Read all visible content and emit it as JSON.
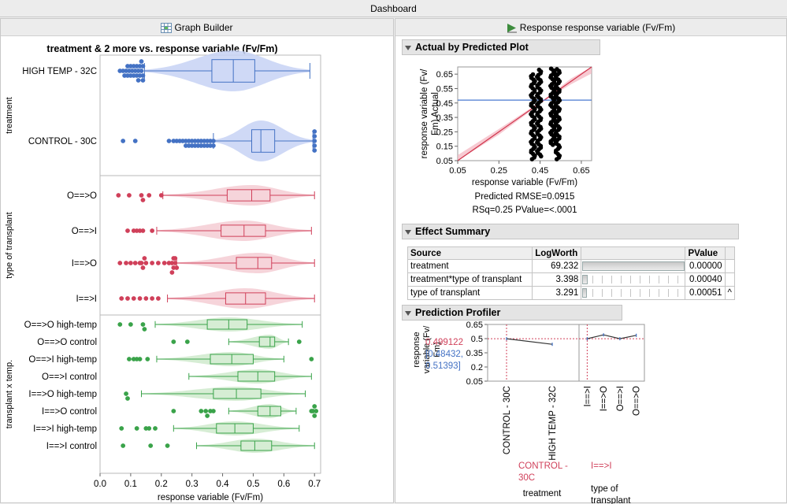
{
  "dashboard": {
    "title": "Dashboard"
  },
  "left_panel": {
    "header": "Graph Builder",
    "chart_title": "treatment & 2 more vs. response variable (Fv/Fm)"
  },
  "right_panel": {
    "header": "Response response variable (Fv/Fm)"
  },
  "colors": {
    "blue": "#4472c4",
    "red": "#d0405a",
    "green": "#3aa34a",
    "blue_fill": "#c7d2f4",
    "red_fill": "#f5cdd4",
    "green_fill": "#cfeacc"
  },
  "chart_data": [
    {
      "type": "box-violin",
      "title": "treatment & 2 more vs. response variable (Fv/Fm)",
      "xlabel": "response variable (Fv/Fm)",
      "xlim": [
        0.0,
        0.72
      ],
      "xticks": [
        "0.0",
        "0.1",
        "0.2",
        "0.3",
        "0.4",
        "0.5",
        "0.6",
        "0.7"
      ],
      "panels": [
        {
          "name": "treatment",
          "color": "blue",
          "rows": [
            {
              "label": "HIGH TEMP - 32C",
              "whisker_lo": 0.145,
              "q1": 0.365,
              "median": 0.435,
              "q3": 0.505,
              "whisker_hi": 0.685,
              "outliers": [
                0.065,
                0.075,
                0.085,
                0.09,
                0.095,
                0.1,
                0.105,
                0.11,
                0.115,
                0.12,
                0.125,
                0.13,
                0.135,
                0.14,
                0.14,
                0.14,
                0.135,
                0.13,
                0.125,
                0.12,
                0.11,
                0.1,
                0.09,
                0.08
              ]
            },
            {
              "label": "CONTROL - 30C",
              "whisker_lo": 0.37,
              "q1": 0.495,
              "median": 0.525,
              "q3": 0.57,
              "whisker_hi": 0.695,
              "outliers": [
                0.075,
                0.115,
                0.225,
                0.24,
                0.25,
                0.26,
                0.27,
                0.28,
                0.29,
                0.3,
                0.31,
                0.32,
                0.33,
                0.34,
                0.35,
                0.36,
                0.37,
                0.37,
                0.36,
                0.35,
                0.34,
                0.33,
                0.32,
                0.31,
                0.3,
                0.29,
                0.28,
                0.7,
                0.7,
                0.7,
                0.7,
                0.7
              ]
            }
          ]
        },
        {
          "name": "type of transplant",
          "color": "red",
          "rows": [
            {
              "label": "O==>O",
              "whisker_lo": 0.205,
              "q1": 0.415,
              "median": 0.495,
              "q3": 0.555,
              "whisker_hi": 0.7,
              "outliers": [
                0.06,
                0.095,
                0.135,
                0.14,
                0.16,
                0.2
              ]
            },
            {
              "label": "O==>I",
              "whisker_lo": 0.185,
              "q1": 0.395,
              "median": 0.47,
              "q3": 0.54,
              "whisker_hi": 0.69,
              "outliers": [
                0.09,
                0.11,
                0.12,
                0.13,
                0.14,
                0.17
              ]
            },
            {
              "label": "I==>O",
              "whisker_lo": 0.25,
              "q1": 0.445,
              "median": 0.515,
              "q3": 0.56,
              "whisker_hi": 0.7,
              "outliers": [
                0.065,
                0.085,
                0.1,
                0.115,
                0.13,
                0.135,
                0.14,
                0.145,
                0.15,
                0.17,
                0.19,
                0.21,
                0.225,
                0.235,
                0.24,
                0.245,
                0.25,
                0.245,
                0.24,
                0.235
              ]
            },
            {
              "label": "I==>I",
              "whisker_lo": 0.22,
              "q1": 0.41,
              "median": 0.475,
              "q3": 0.54,
              "whisker_hi": 0.7,
              "outliers": [
                0.07,
                0.09,
                0.11,
                0.13,
                0.15,
                0.17,
                0.19
              ]
            }
          ]
        },
        {
          "name": "transplant x temp.",
          "color": "green",
          "rows": [
            {
              "label": "O==>O high-temp",
              "whisker_lo": 0.18,
              "q1": 0.35,
              "median": 0.42,
              "q3": 0.48,
              "whisker_hi": 0.66,
              "outliers": [
                0.065,
                0.1,
                0.14,
                0.145
              ]
            },
            {
              "label": "O==>O control",
              "whisker_lo": 0.42,
              "q1": 0.52,
              "median": 0.555,
              "q3": 0.57,
              "whisker_hi": 0.615,
              "outliers": [
                0.24,
                0.285,
                0.65
              ]
            },
            {
              "label": "O==>I high-temp",
              "whisker_lo": 0.185,
              "q1": 0.36,
              "median": 0.43,
              "q3": 0.5,
              "whisker_hi": 0.6,
              "outliers": [
                0.095,
                0.11,
                0.12,
                0.13,
                0.155,
                0.69
              ]
            },
            {
              "label": "O==>I control",
              "whisker_lo": 0.29,
              "q1": 0.45,
              "median": 0.515,
              "q3": 0.57,
              "whisker_hi": 0.69,
              "outliers": []
            },
            {
              "label": "I==>O high-temp",
              "whisker_lo": 0.135,
              "q1": 0.37,
              "median": 0.445,
              "q3": 0.525,
              "whisker_hi": 0.67,
              "outliers": [
                0.085,
                0.09
              ]
            },
            {
              "label": "I==>O control",
              "whisker_lo": 0.42,
              "q1": 0.515,
              "median": 0.555,
              "q3": 0.59,
              "whisker_hi": 0.64,
              "outliers": [
                0.24,
                0.33,
                0.345,
                0.35,
                0.36,
                0.37,
                0.69,
                0.695,
                0.7,
                0.7,
                0.705
              ]
            },
            {
              "label": "I==>I high-temp",
              "whisker_lo": 0.24,
              "q1": 0.38,
              "median": 0.44,
              "q3": 0.5,
              "whisker_hi": 0.65,
              "outliers": [
                0.07,
                0.12,
                0.15,
                0.16,
                0.18
              ]
            },
            {
              "label": "I==>I control",
              "whisker_lo": 0.315,
              "q1": 0.46,
              "median": 0.505,
              "q3": 0.56,
              "whisker_hi": 0.7,
              "outliers": [
                0.075,
                0.165,
                0.22
              ]
            }
          ]
        }
      ]
    },
    {
      "type": "scatter",
      "title": "Actual by Predicted Plot",
      "xlabel": "response variable (Fv/Fm)",
      "ylabel": "response variable (Fv/Fm) Actual",
      "xlim": [
        0.05,
        0.7
      ],
      "ylim": [
        0.05,
        0.7
      ],
      "xticks": [
        "0.05",
        "0.25",
        "0.45",
        "0.65"
      ],
      "yticks": [
        "0.05",
        "0.15",
        "0.25",
        "0.35",
        "0.45",
        "0.55",
        "0.65"
      ],
      "mean_line": 0.47,
      "groups": [
        {
          "x": 0.415,
          "y_range": [
            0.06,
            0.66
          ]
        },
        {
          "x": 0.445,
          "y_range": [
            0.08,
            0.69
          ]
        },
        {
          "x": 0.51,
          "y_range": [
            0.16,
            0.7
          ]
        },
        {
          "x": 0.535,
          "y_range": [
            0.06,
            0.69
          ]
        }
      ],
      "stats": [
        "Predicted RMSE=0.0915",
        "RSq=0.25 PValue=<.0001"
      ]
    },
    {
      "type": "table",
      "title": "Effect Summary",
      "columns": [
        "Source",
        "LogWorth",
        "",
        "PValue"
      ],
      "rows": [
        {
          "source": "treatment",
          "logworth": "69.232",
          "value": 69.232,
          "pvalue": "0.00000",
          "flag": ""
        },
        {
          "source": "treatment*type of transplant",
          "logworth": "3.398",
          "value": 3.398,
          "pvalue": "0.00040",
          "flag": ""
        },
        {
          "source": "type of transplant",
          "logworth": "3.291",
          "value": 3.291,
          "pvalue": "0.00051",
          "flag": "^"
        }
      ]
    },
    {
      "type": "line",
      "title": "Prediction Profiler",
      "ylabel": "response variable (Fv/Fm)",
      "ylim": [
        0.05,
        0.65
      ],
      "yticks": [
        "0.65",
        "0.5",
        "0.35",
        "0.2",
        "0.05"
      ],
      "predicted": "0.499122",
      "interval": [
        "[0.48432,",
        "0.51393]"
      ],
      "factors": [
        {
          "name": "treatment",
          "name_lines": [
            "treatment"
          ],
          "current": "CONTROL - 30C",
          "current_lines": [
            "CONTROL -",
            "30C"
          ],
          "levels": [
            "CONTROL - 30C",
            "HIGH TEMP - 32C"
          ],
          "values": [
            0.499,
            0.44
          ]
        },
        {
          "name": "type of transplant",
          "name_lines": [
            "type of",
            "transplant"
          ],
          "current": "I==>I",
          "current_lines": [
            "I==>I"
          ],
          "levels": [
            "I==>I",
            "I==>O",
            "O==>I",
            "O==>O"
          ],
          "values": [
            0.499,
            0.54,
            0.499,
            0.535
          ]
        }
      ]
    }
  ]
}
